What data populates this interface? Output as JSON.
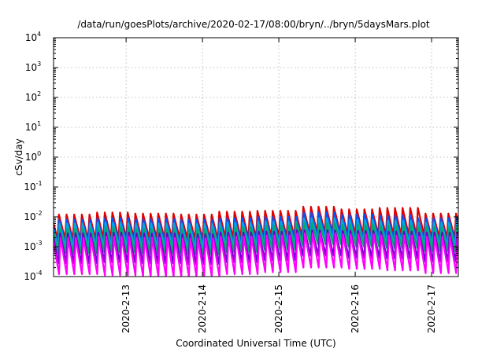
{
  "chart_data": {
    "type": "line",
    "title": "/data/run/goesPlots/archive/2020-02-17/08:00/bryn/../bryn/5daysMars.plot",
    "xlabel": "Coordinated Universal Time (UTC)",
    "ylabel": "cSv/day",
    "yscale": "log",
    "ylim": [
      0.0001,
      10000
    ],
    "xlim_days": [
      12.05,
      17.35
    ],
    "grid": true,
    "y_ticks": [
      {
        "value": 0.0001,
        "base": "10",
        "exp": "-4"
      },
      {
        "value": 0.001,
        "base": "10",
        "exp": "-3"
      },
      {
        "value": 0.01,
        "base": "10",
        "exp": "-2"
      },
      {
        "value": 0.1,
        "base": "10",
        "exp": "-1"
      },
      {
        "value": 1,
        "base": "10",
        "exp": "0"
      },
      {
        "value": 10,
        "base": "10",
        "exp": "1"
      },
      {
        "value": 100,
        "base": "10",
        "exp": "2"
      },
      {
        "value": 1000,
        "base": "10",
        "exp": "3"
      },
      {
        "value": 10000,
        "base": "10",
        "exp": "4"
      }
    ],
    "x_ticks": [
      {
        "day": 13,
        "label": "2020-2-13"
      },
      {
        "day": 14,
        "label": "2020-2-14"
      },
      {
        "day": 15,
        "label": "2020-2-15"
      },
      {
        "day": 16,
        "label": "2020-2-16"
      },
      {
        "day": 17,
        "label": "2020-2-17"
      }
    ],
    "sawtooth_period_days": 0.1,
    "series": [
      {
        "color": "#e00000",
        "peak": [
          0.012,
          0.014,
          0.013,
          0.012,
          0.015,
          0.016,
          0.022,
          0.018,
          0.02,
          0.013
        ],
        "trough": [
          0.0018,
          0.002,
          0.0019,
          0.0018,
          0.002,
          0.0022,
          0.003,
          0.0026,
          0.0024,
          0.002
        ]
      },
      {
        "color": "#0055ff",
        "peak": [
          0.008,
          0.009,
          0.0085,
          0.008,
          0.009,
          0.01,
          0.014,
          0.012,
          0.011,
          0.009
        ],
        "trough": [
          0.0012,
          0.0013,
          0.0012,
          0.0011,
          0.0013,
          0.0015,
          0.0022,
          0.0018,
          0.0016,
          0.0013
        ]
      },
      {
        "color": "#00aadd",
        "peak": [
          0.006,
          0.0065,
          0.006,
          0.0058,
          0.0065,
          0.007,
          0.009,
          0.008,
          0.0075,
          0.0065
        ],
        "trough": [
          0.0009,
          0.00095,
          0.0009,
          0.00085,
          0.00095,
          0.0011,
          0.0016,
          0.0013,
          0.0012,
          0.001
        ]
      },
      {
        "color": "#00aa66",
        "peak": [
          0.004,
          0.0045,
          0.004,
          0.0038,
          0.0045,
          0.005,
          0.006,
          0.0055,
          0.005,
          0.0045
        ],
        "trough": [
          0.0006,
          0.00065,
          0.0006,
          0.00055,
          0.00065,
          0.0008,
          0.0012,
          0.001,
          0.0009,
          0.0007
        ]
      },
      {
        "color": "#6600cc",
        "peak": [
          0.0028,
          0.003,
          0.0028,
          0.0026,
          0.003,
          0.0032,
          0.0036,
          0.0034,
          0.0032,
          0.003
        ],
        "trough": [
          0.00028,
          0.0003,
          0.00028,
          0.00026,
          0.0003,
          0.00035,
          0.0005,
          0.00042,
          0.0004,
          0.00032
        ]
      },
      {
        "color": "#ff00ff",
        "peak": [
          0.002,
          0.0022,
          0.002,
          0.0019,
          0.0022,
          0.0024,
          0.0028,
          0.0026,
          0.0024,
          0.0022
        ],
        "trough": [
          0.00012,
          0.00011,
          0.0001,
          0.0001,
          0.00012,
          0.00014,
          0.0002,
          0.00018,
          0.00016,
          0.00013
        ]
      }
    ]
  }
}
